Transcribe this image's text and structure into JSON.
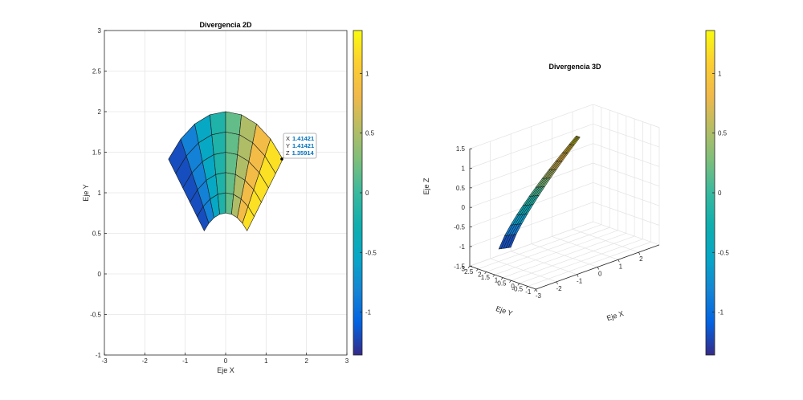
{
  "chart_data": [
    {
      "type": "surface-2d-view",
      "title": "Divergencia 2D",
      "xlabel": "Eje X",
      "ylabel": "Eje Y",
      "xlim": [
        -3,
        3
      ],
      "ylim": [
        -1,
        3
      ],
      "xticks": [
        -3,
        -2,
        -1,
        0,
        1,
        2,
        3
      ],
      "yticks": [
        -1,
        -0.5,
        0,
        0.5,
        1,
        1.5,
        2,
        2.5,
        3
      ],
      "grid": true,
      "colormap": "parula",
      "surface": {
        "domain": "annular sector",
        "r_range": [
          0.75,
          2
        ],
        "theta_range_deg": [
          45,
          135
        ],
        "r_steps": 5,
        "theta_steps": 8,
        "color_value_range": [
          -1.35914,
          1.35914
        ]
      },
      "colorbar": {
        "ticks": [
          -1,
          -0.5,
          0,
          0.5,
          1
        ],
        "range": [
          -1.35914,
          1.35914
        ]
      },
      "datatip": {
        "x_label": "X",
        "x_value": "1.41421",
        "y_label": "Y",
        "y_value": "1.41421",
        "z_label": "Z",
        "z_value": "1.35914"
      }
    },
    {
      "type": "surface-3d",
      "title": "Divergencia 3D",
      "xlabel": "Eje X",
      "ylabel": "Eje Y",
      "zlabel": "Eje Z",
      "xlim": [
        -3,
        3
      ],
      "ylim": [
        -1,
        3
      ],
      "zlim": [
        -1.5,
        1.5
      ],
      "xticks": [
        -3,
        -2,
        -1,
        0,
        1,
        2
      ],
      "yticks": [
        -1,
        -0.5,
        0,
        0.5,
        1,
        1.5,
        2,
        2.5,
        3
      ],
      "zticks": [
        -1.5,
        -1,
        -0.5,
        0,
        0.5,
        1,
        1.5
      ],
      "grid": true,
      "colormap": "parula",
      "colorbar": {
        "ticks": [
          -1,
          -0.5,
          0,
          0.5,
          1
        ],
        "range": [
          -1.35914,
          1.35914
        ]
      }
    }
  ]
}
